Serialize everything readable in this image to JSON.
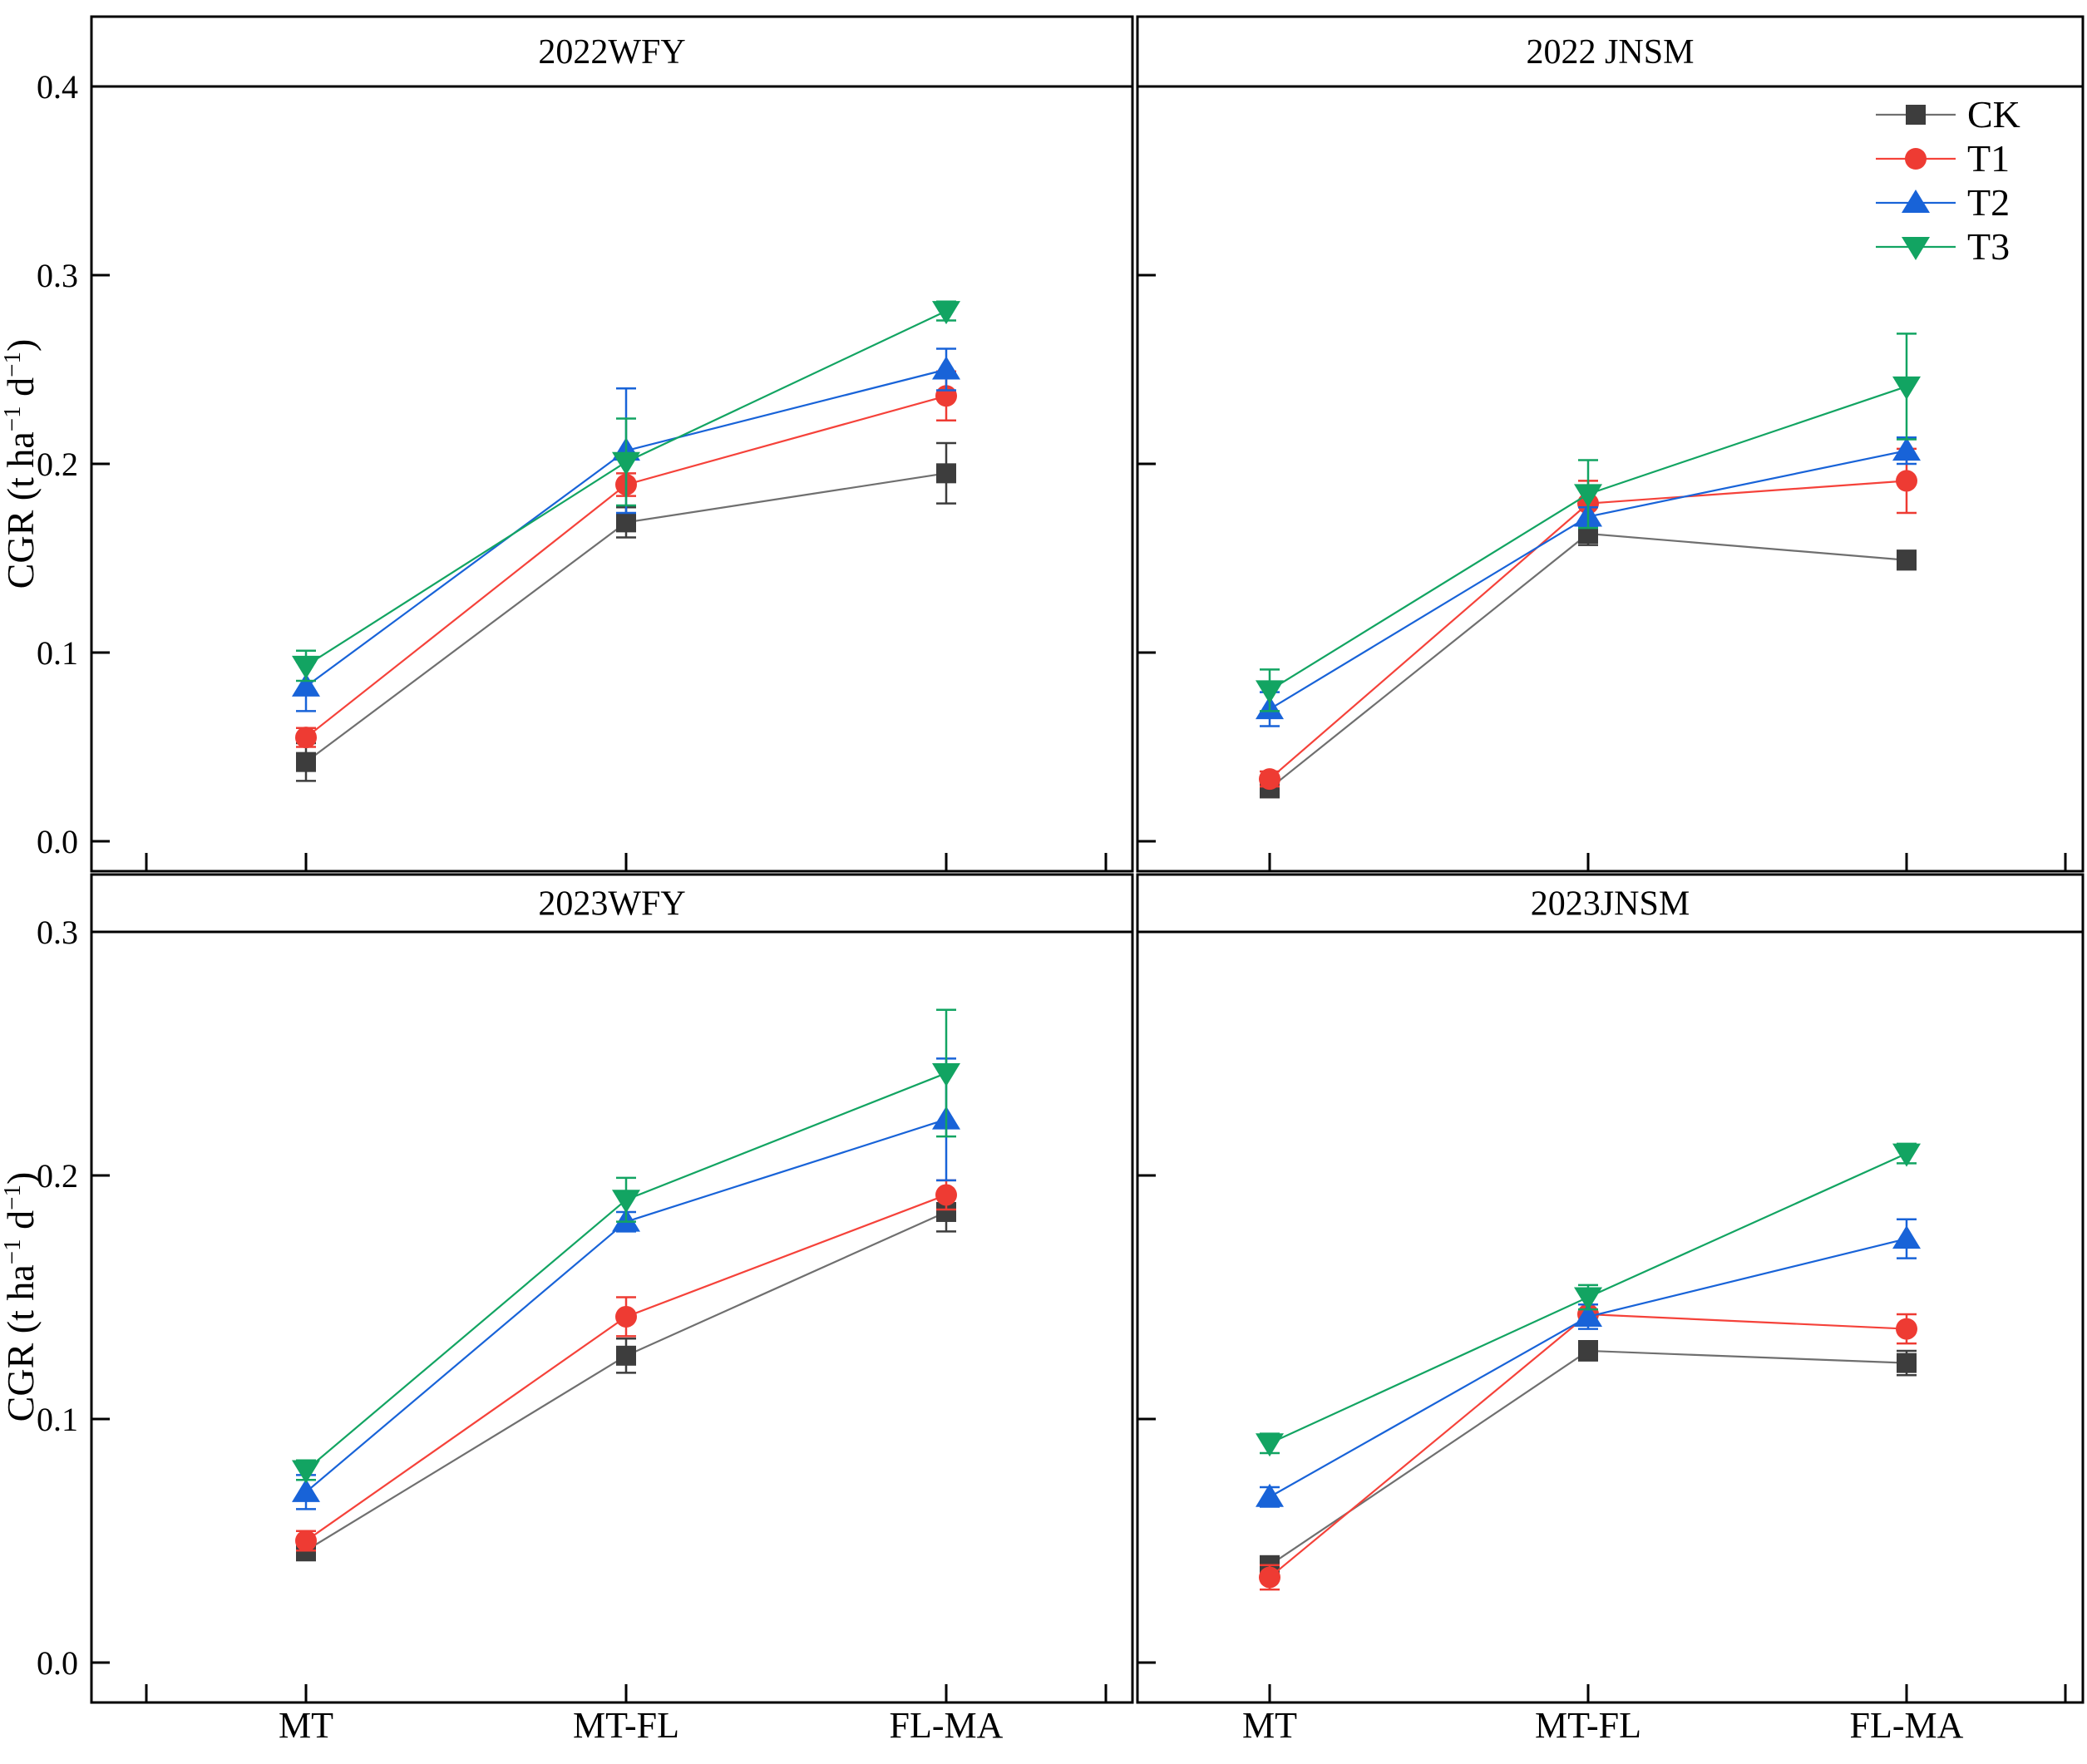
{
  "figure": {
    "ylabel": "CGR (t ha⁻¹ d⁻¹)",
    "background": "#ffffff",
    "border_color": "#000000"
  },
  "legend": {
    "position": "top-right-panel",
    "items": [
      {
        "label": "CK",
        "marker": "square",
        "marker_color": "#3d3d3d",
        "line_color": "#6f6f6f"
      },
      {
        "label": "T1",
        "marker": "circle",
        "marker_color": "#ee3b33",
        "line_color": "#f5423a"
      },
      {
        "label": "T2",
        "marker": "triangle-up",
        "marker_color": "#1863d8",
        "line_color": "#1863d8"
      },
      {
        "label": "T3",
        "marker": "triangle-down",
        "marker_color": "#12a462",
        "line_color": "#12a462"
      }
    ]
  },
  "chart_data": [
    {
      "type": "line",
      "title": "2022WFY",
      "categories": [
        "MT",
        "MT-FL",
        "FL-MA"
      ],
      "xlabel": "",
      "ylabel": "CGR (t ha⁻¹ d⁻¹)",
      "ylim": [
        0.0,
        0.4
      ],
      "yticks": [
        0.0,
        0.1,
        0.2,
        0.3,
        0.4
      ],
      "grid": false,
      "legend_here": false,
      "series": [
        {
          "name": "CK",
          "values": [
            0.042,
            0.169,
            0.195
          ],
          "errors": [
            0.01,
            0.008,
            0.016
          ]
        },
        {
          "name": "T1",
          "values": [
            0.055,
            0.189,
            0.236
          ],
          "errors": [
            0.005,
            0.006,
            0.013
          ]
        },
        {
          "name": "T2",
          "values": [
            0.082,
            0.207,
            0.25
          ],
          "errors": [
            0.013,
            0.033,
            0.011
          ]
        },
        {
          "name": "T3",
          "values": [
            0.093,
            0.201,
            0.281
          ],
          "errors": [
            0.008,
            0.023,
            0.005
          ]
        }
      ]
    },
    {
      "type": "line",
      "title": "2022 JNSM",
      "categories": [
        "MT",
        "MT-FL",
        "FL-MA"
      ],
      "xlabel": "",
      "ylabel": "CGR (t ha⁻¹ d⁻¹)",
      "ylim": [
        0.0,
        0.4
      ],
      "yticks": [
        0.0,
        0.1,
        0.2,
        0.3,
        0.4
      ],
      "grid": false,
      "legend_here": true,
      "series": [
        {
          "name": "CK",
          "values": [
            0.028,
            0.163,
            0.149
          ],
          "errors": [
            0.003,
            0.006,
            0.005
          ]
        },
        {
          "name": "T1",
          "values": [
            0.033,
            0.179,
            0.191
          ],
          "errors": [
            0.004,
            0.012,
            0.017
          ]
        },
        {
          "name": "T2",
          "values": [
            0.07,
            0.172,
            0.207
          ],
          "errors": [
            0.009,
            0.005,
            0.007
          ]
        },
        {
          "name": "T3",
          "values": [
            0.08,
            0.184,
            0.241
          ],
          "errors": [
            0.011,
            0.018,
            0.028
          ]
        }
      ]
    },
    {
      "type": "line",
      "title": "2023WFY",
      "categories": [
        "MT",
        "MT-FL",
        "FL-MA"
      ],
      "xlabel": "",
      "ylabel": "CGR (t ha⁻¹ d⁻¹)",
      "ylim": [
        0.0,
        0.3
      ],
      "yticks": [
        0.0,
        0.1,
        0.2,
        0.3
      ],
      "grid": false,
      "legend_here": false,
      "series": [
        {
          "name": "CK",
          "values": [
            0.046,
            0.126,
            0.185
          ],
          "errors": [
            0.004,
            0.007,
            0.008
          ]
        },
        {
          "name": "T1",
          "values": [
            0.05,
            0.142,
            0.192
          ],
          "errors": [
            0.004,
            0.008,
            0.006
          ]
        },
        {
          "name": "T2",
          "values": [
            0.07,
            0.181,
            0.223
          ],
          "errors": [
            0.007,
            0.004,
            0.025
          ]
        },
        {
          "name": "T3",
          "values": [
            0.079,
            0.19,
            0.242
          ],
          "errors": [
            0.004,
            0.009,
            0.026
          ]
        }
      ]
    },
    {
      "type": "line",
      "title": "2023JNSM",
      "categories": [
        "MT",
        "MT-FL",
        "FL-MA"
      ],
      "xlabel": "",
      "ylabel": "CGR (t ha⁻¹ d⁻¹)",
      "ylim": [
        0.0,
        0.3
      ],
      "yticks": [
        0.0,
        0.1,
        0.2,
        0.3
      ],
      "grid": false,
      "legend_here": false,
      "series": [
        {
          "name": "CK",
          "values": [
            0.04,
            0.128,
            0.123
          ],
          "errors": [
            0.003,
            0.004,
            0.005
          ]
        },
        {
          "name": "T1",
          "values": [
            0.035,
            0.143,
            0.137
          ],
          "errors": [
            0.005,
            0.004,
            0.006
          ]
        },
        {
          "name": "T2",
          "values": [
            0.068,
            0.142,
            0.174
          ],
          "errors": [
            0.004,
            0.005,
            0.008
          ]
        },
        {
          "name": "T3",
          "values": [
            0.09,
            0.15,
            0.209
          ],
          "errors": [
            0.004,
            0.005,
            0.004
          ]
        }
      ]
    }
  ]
}
